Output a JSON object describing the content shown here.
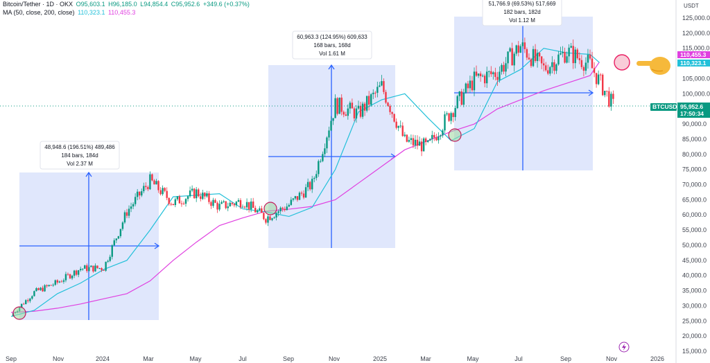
{
  "legend": {
    "title": "Bitcoin/Tether · 1D · OKX",
    "o": "O95,603.1",
    "h": "H96,185.0",
    "l": "L94,854.4",
    "c": "C95,952.6",
    "chg": "+349.6 (+0.37%)",
    "ma_label": "MA (50, close, 200, close)",
    "ma50_val": "110,323.1",
    "ma200_val": "110,455.3"
  },
  "price_axis": {
    "unit": "USDT",
    "ticks": [
      "125,000.0",
      "120,000.0",
      "115,000.0",
      "110,000.0",
      "105,000.0",
      "100,000.0",
      "95,000.0",
      "90,000.0",
      "85,000.0",
      "80,000.0",
      "75,000.0",
      "70,000.0",
      "65,000.0",
      "60,000.0",
      "55,000.0",
      "50,000.0",
      "45,000.0",
      "40,000.0",
      "35,000.0",
      "30,000.0",
      "25,000.0",
      "20,000.0",
      "15,000.0"
    ]
  },
  "time_axis": {
    "labels": [
      "Sep",
      "Nov",
      "2024",
      "Mar",
      "May",
      "Jul",
      "Sep",
      "Nov",
      "2025",
      "Mar",
      "May",
      "Jul",
      "Sep",
      "Nov",
      "2026"
    ]
  },
  "tags": {
    "ma200": "110,455.3",
    "ma50": "110,323.1",
    "symbol": "BTCUSDT",
    "price": "95,952.6",
    "countdown": "17:50:34"
  },
  "measures": [
    {
      "line1": "48,948.6 (196.51%) 489,486",
      "line2": "184 bars, 184d",
      "line3": "Vol 2.37 M"
    },
    {
      "line1": "60,963.3 (124.95%) 609,633",
      "line2": "168 bars, 168d",
      "line3": "Vol 1.61 M"
    },
    {
      "line1": "51,766.9 (69.53%) 517,669",
      "line2": "182 bars, 182d",
      "line3": "Vol 1.12 M"
    }
  ],
  "colors": {
    "up": "#089981",
    "down": "#f23645",
    "ma50": "#22c0d9",
    "ma200": "#e040e0",
    "measure_fill": "#dbe3fb",
    "measure_line": "#2962ff",
    "price_line": "#089981"
  },
  "chart_data": {
    "type": "candlestick",
    "x": [
      "2023-09",
      "2023-10",
      "2023-11",
      "2023-12",
      "2024-01",
      "2024-02",
      "2024-03",
      "2024-04",
      "2024-05",
      "2024-06",
      "2024-07",
      "2024-08",
      "2024-09",
      "2024-10",
      "2024-11",
      "2024-12",
      "2025-01",
      "2025-02",
      "2025-03",
      "2025-04",
      "2025-05",
      "2025-06",
      "2025-07",
      "2025-08",
      "2025-09",
      "2025-10",
      "2025-11"
    ],
    "close": [
      26900,
      34500,
      37700,
      42300,
      42500,
      61100,
      71300,
      63900,
      67500,
      62700,
      64600,
      59000,
      63300,
      70200,
      96400,
      93400,
      102400,
      84400,
      82500,
      94200,
      104600,
      107100,
      115800,
      108200,
      114000,
      109600,
      95952.6
    ],
    "series": [
      {
        "name": "MA (50, close)",
        "values": [
          26500,
          28500,
          34000,
          37500,
          42000,
          45000,
          55000,
          66000,
          66500,
          67000,
          62000,
          61000,
          59500,
          62500,
          75000,
          94000,
          98000,
          100000,
          92000,
          84500,
          88500,
          104000,
          108000,
          115000,
          113500,
          113000,
          110323.1
        ]
      },
      {
        "name": "MA (200, close)",
        "values": [
          27800,
          28200,
          29200,
          30600,
          32300,
          34000,
          38200,
          45000,
          51000,
          56500,
          59000,
          61200,
          61900,
          62800,
          65000,
          70500,
          76000,
          81500,
          84500,
          87500,
          90000,
          95000,
          98000,
          101000,
          103500,
          106000,
          110455.3
        ]
      }
    ],
    "ylim": [
      15000,
      127000
    ],
    "ylabel": "USDT"
  }
}
